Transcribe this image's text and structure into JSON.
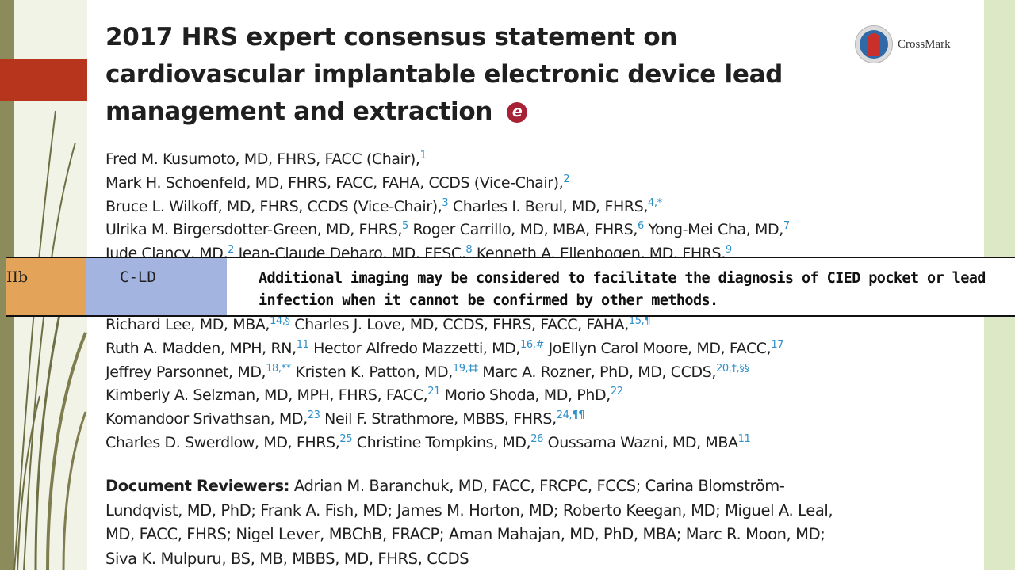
{
  "paper": {
    "title": "2017 HRS expert consensus statement on cardiovascular implantable electronic device lead management and extraction",
    "title_icon": "e-icon",
    "crossmark_label": "CrossMark",
    "authors_top": [
      {
        "text": "Fred M. Kusumoto, MD, FHRS, FACC (Chair),",
        "sup": "1"
      },
      {
        "text": "Mark H. Schoenfeld, MD, FHRS, FACC, FAHA, CCDS (Vice-Chair),",
        "sup": "2"
      },
      {
        "text": "Bruce L. Wilkoff, MD, FHRS, CCDS (Vice-Chair),",
        "sup": "3",
        "text2": " Charles I. Berul, MD, FHRS,",
        "sup2": "4,*"
      },
      {
        "text": "Ulrika M. Birgersdotter-Green, MD, FHRS,",
        "sup": "5",
        "text2": " Roger Carrillo, MD, MBA, FHRS,",
        "sup2": "6",
        "text3": " Yong-Mei Cha, MD,",
        "sup3": "7"
      },
      {
        "text": "Jude Clancy, MD,",
        "sup": "2",
        "text2": " Jean-Claude Deharo, MD, FESC,",
        "sup2": "8",
        "text3": " Kenneth A. Ellenbogen, MD, FHRS,",
        "sup3": "9"
      }
    ],
    "authors_bottom": [
      {
        "text": "Richard Lee, MD, MBA,",
        "sup": "14,§",
        "text2": " Charles J. Love, MD, CCDS, FHRS, FACC, FAHA,",
        "sup2": "15,¶"
      },
      {
        "text": "Ruth A. Madden, MPH, RN,",
        "sup": "11",
        "text2": " Hector Alfredo Mazzetti, MD,",
        "sup2": "16,#",
        "text3": " JoEllyn Carol Moore, MD, FACC,",
        "sup3": "17"
      },
      {
        "text": "Jeffrey Parsonnet, MD,",
        "sup": "18,**",
        "text2": " Kristen K. Patton, MD,",
        "sup2": "19,‡‡",
        "text3": " Marc A. Rozner, PhD, MD, CCDS,",
        "sup3": "20,†,§§"
      },
      {
        "text": "Kimberly A. Selzman, MD, MPH, FHRS, FACC,",
        "sup": "21",
        "text2": " Morio Shoda, MD, PhD,",
        "sup2": "22"
      },
      {
        "text": "Komandoor Srivathsan, MD,",
        "sup": "23",
        "text2": " Neil F. Strathmore, MBBS, FHRS,",
        "sup2": "24,¶¶"
      },
      {
        "text": "Charles D. Swerdlow, MD, FHRS,",
        "sup": "25",
        "text2": " Christine Tompkins, MD,",
        "sup2": "26",
        "text3": " Oussama Wazni, MD, MBA",
        "sup3": "11"
      }
    ],
    "reviewers_label": "Document Reviewers:",
    "reviewers_text": " Adrian M. Baranchuk, MD, FACC, FRCPC, FCCS; Carina Blomström-Lundqvist, MD, PhD; Frank A. Fish, MD; James M. Horton, MD; Roberto Keegan, MD; Miguel A. Leal, MD, FACC, FHRS; Nigel Lever, MBChB, FRACP; Aman Mahajan, MD, PhD, MBA; Marc R. Moon, MD; Siva K. Mulpuru, BS, MB, MBBS, MD, FHRS, CCDS"
  },
  "recommendation": {
    "class": "IIb",
    "loe": "C-LD",
    "text": "Additional imaging may be considered to facilitate the diagnosis of CIED pocket or lead infection when it cannot be confirmed by other methods."
  },
  "colors": {
    "class_bg": "#e3a358",
    "loe_bg": "#a4b4e0",
    "accent_red": "#b7351d",
    "sup_blue": "#2f8fc9"
  }
}
